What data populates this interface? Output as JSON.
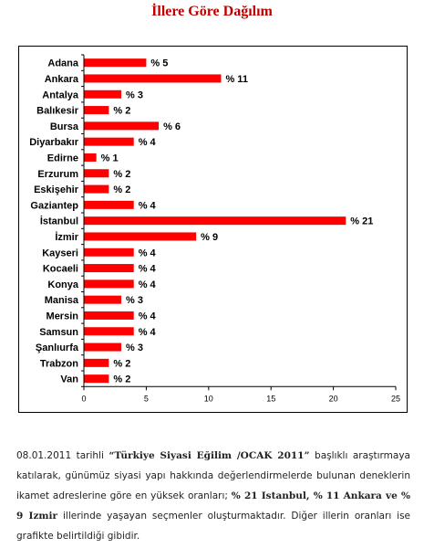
{
  "title": "İllere Göre Dağılım",
  "chart_data": {
    "type": "bar",
    "orientation": "horizontal",
    "bar_color": "#ff0000",
    "value_prefix": "% ",
    "categories": [
      "Adana",
      "Ankara",
      "Antalya",
      "Balıkesir",
      "Bursa",
      "Diyarbakır",
      "Edirne",
      "Erzurum",
      "Eskişehir",
      "Gaziantep",
      "İstanbul",
      "İzmir",
      "Kayseri",
      "Kocaeli",
      "Konya",
      "Manisa",
      "Mersin",
      "Samsun",
      "Şanlıurfa",
      "Trabzon",
      "Van"
    ],
    "values": [
      5,
      11,
      3,
      2,
      6,
      4,
      1,
      2,
      2,
      4,
      21,
      9,
      4,
      4,
      4,
      3,
      4,
      4,
      3,
      2,
      2
    ],
    "xlim": [
      0,
      25
    ],
    "xticks": [
      "0",
      "5",
      "10",
      "15",
      "20",
      "25"
    ],
    "grid": false,
    "legend": "none"
  },
  "caption": {
    "p1": "08.01.2011 tarihli ",
    "p2": "“Türkiye Siyasi Eğilim /OCAK 2011”",
    "p3": " başlıklı araştırmaya katılarak, günümüz siyasi yapı hakkında değerlendirmelerde bulunan deneklerin ikamet adreslerine göre en yüksek oranları; ",
    "p4": "% 21 Istanbul, % 11 Ankara ve % 9 Izmir",
    "p5": " illerinde yaşayan seçmenler oluşturmaktadır. Diğer illerin oranları ise grafikte belirtildiği gibidir."
  }
}
